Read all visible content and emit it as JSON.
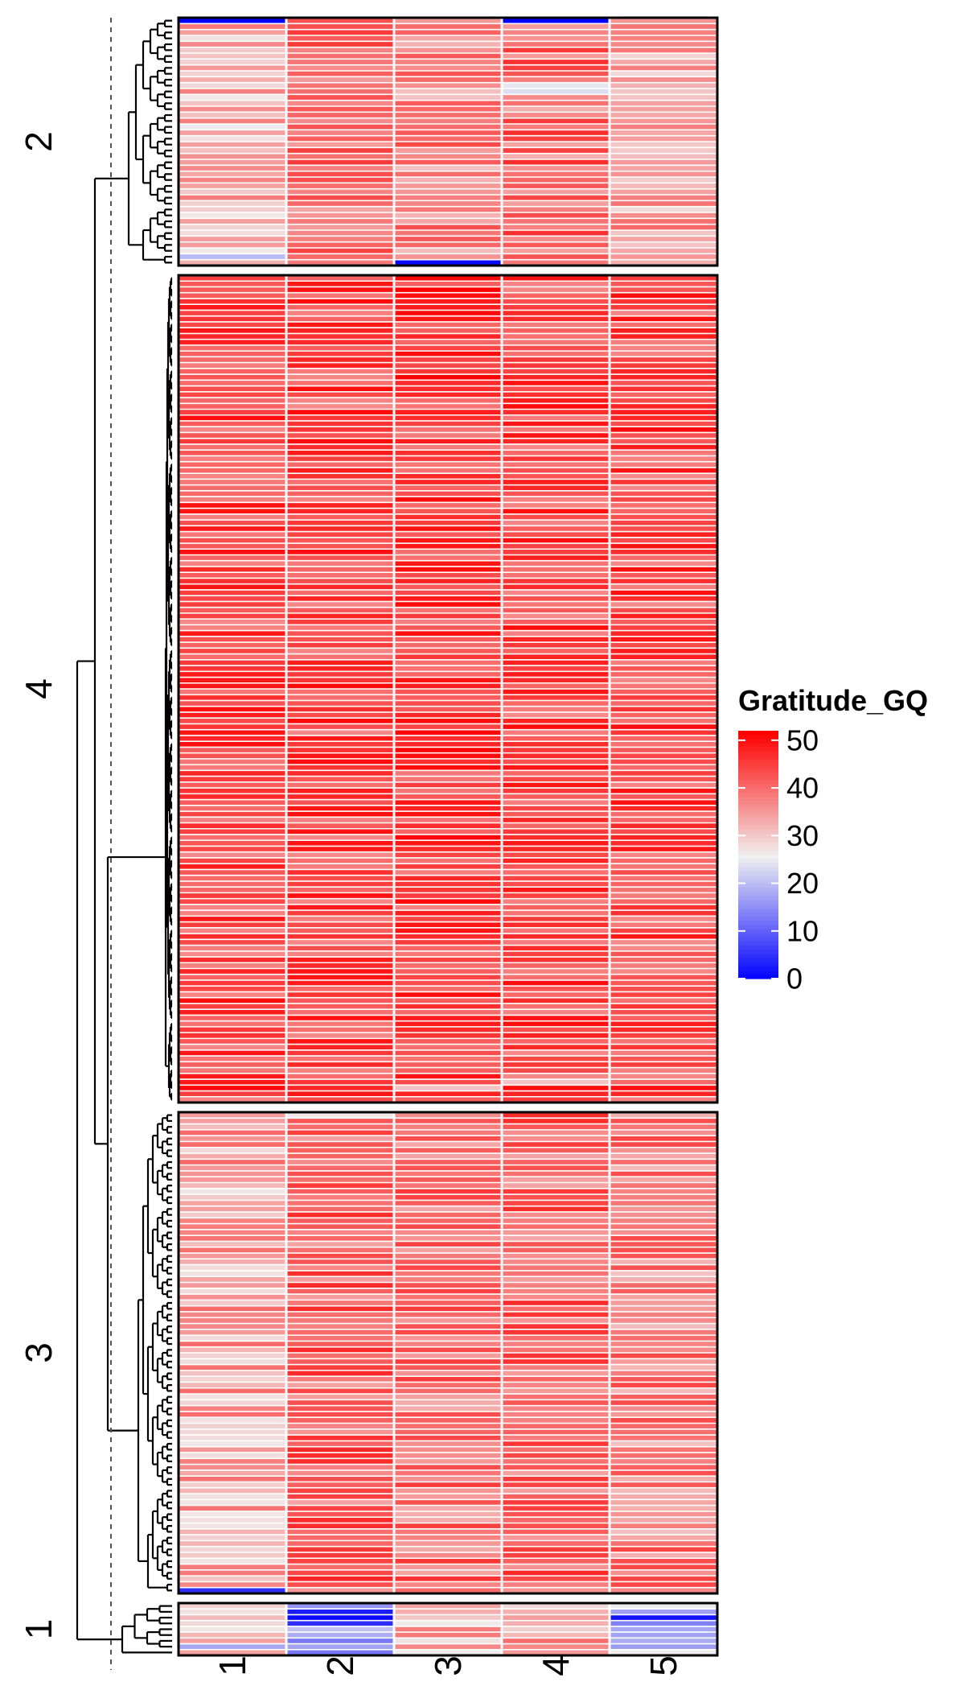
{
  "chart_data": {
    "type": "heatmap",
    "title": "",
    "columns": [
      "1",
      "2",
      "3",
      "4",
      "5"
    ],
    "row_clusters": [
      {
        "label": "2",
        "rows": 42,
        "column_means": [
          32,
          41,
          38,
          40,
          34
        ],
        "notable_cells": [
          {
            "row_index": 0,
            "column": "1",
            "value": 0
          },
          {
            "row_index": 0,
            "column": "4",
            "value": 0
          },
          {
            "row_index": 41,
            "column": "3",
            "value": 1
          },
          {
            "row_index": 40,
            "column": "1",
            "value": 20
          },
          {
            "row_index": 11,
            "column": "4",
            "value": 25
          },
          {
            "row_index": 12,
            "column": "4",
            "value": 24
          }
        ]
      },
      {
        "label": "4",
        "rows": 142,
        "column_means": [
          44,
          44,
          45,
          44,
          44
        ],
        "notable_cells": [
          {
            "row_index": 138,
            "column": "4",
            "value": 31
          },
          {
            "row_index": 139,
            "column": "3",
            "value": 31
          }
        ]
      },
      {
        "label": "3",
        "rows": 82,
        "column_means": [
          34,
          41,
          40,
          41,
          38
        ],
        "notable_cells": [
          {
            "row_index": 81,
            "column": "1",
            "value": 5
          },
          {
            "row_index": 0,
            "column": "2",
            "value": 27
          }
        ]
      },
      {
        "label": "1",
        "rows": 9,
        "column_means": [
          30,
          19,
          32,
          34,
          23
        ],
        "notable_cells": [
          {
            "row_index": 1,
            "column": "2",
            "value": 3
          },
          {
            "row_index": 2,
            "column": "2",
            "value": 1
          },
          {
            "row_index": 3,
            "column": "2",
            "value": 5
          },
          {
            "row_index": 2,
            "column": "5",
            "value": 2
          },
          {
            "row_index": 3,
            "column": "5",
            "value": 14
          },
          {
            "row_index": 7,
            "column": "1",
            "value": 18
          }
        ]
      }
    ],
    "color_scale": {
      "title": "Gratitude_GQ",
      "min": 0,
      "max": 52,
      "ticks": [
        "0",
        "10",
        "20",
        "30",
        "40",
        "50"
      ],
      "stops": [
        {
          "value": 0,
          "color": "#0000ff"
        },
        {
          "value": 26,
          "color": "#f0f0f0"
        },
        {
          "value": 52,
          "color": "#ff0000"
        }
      ]
    },
    "dendrogram": "left",
    "cluster_cut": "dashed"
  }
}
